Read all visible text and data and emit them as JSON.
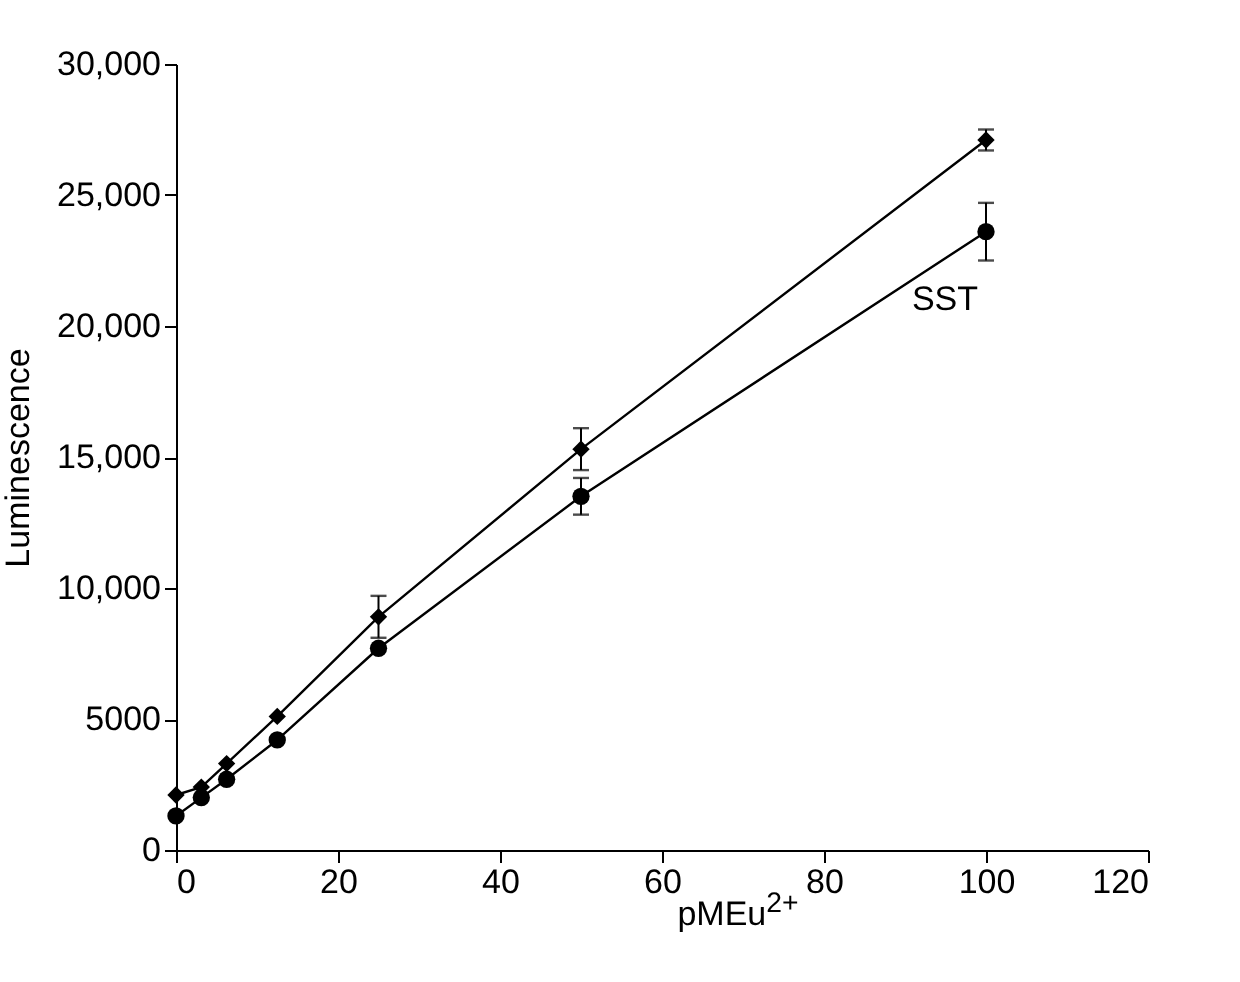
{
  "chart_data": {
    "type": "line",
    "xlabel": "pMEu$^{2+}$",
    "ylabel": "Luminescence",
    "x": [
      0,
      3.125,
      6.25,
      12.5,
      25,
      50,
      100
    ],
    "series": [
      {
        "color": "#000000",
        "marker": "diamond",
        "values": [
          2100,
          2400,
          3300,
          5100,
          8900,
          15300,
          27100
        ],
        "errors": [
          null,
          null,
          null,
          null,
          800,
          800,
          400
        ]
      },
      {
        "name": "SST",
        "color": "#000000",
        "marker": "circle",
        "values": [
          1300,
          2000,
          2700,
          4200,
          7700,
          13500,
          23600
        ],
        "errors": [
          null,
          null,
          null,
          null,
          null,
          700,
          1100
        ]
      }
    ],
    "xlim": [
      0,
      120
    ],
    "xticks": [
      0,
      20,
      40,
      60,
      80,
      100,
      120
    ],
    "ylim": [
      0,
      30000
    ],
    "yticks": [
      0,
      5000,
      {
        "value": 10000,
        "label": "10,000"
      },
      {
        "value": 15000,
        "label": "15,000"
      },
      {
        "value": 20000,
        "label": "20,000"
      },
      {
        "value": 25000,
        "label": "25,000"
      },
      {
        "value": 30000,
        "label": "30,000"
      }
    ],
    "grid": false,
    "line_style": "solid"
  }
}
